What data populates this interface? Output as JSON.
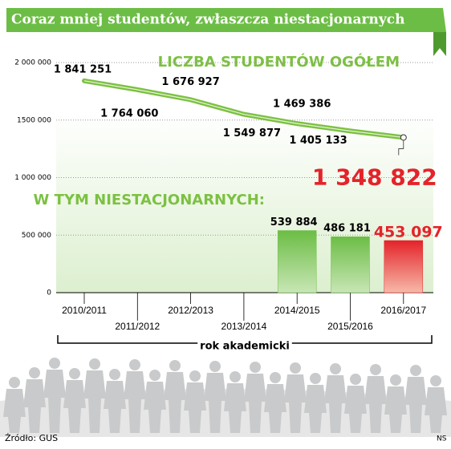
{
  "chart_data": {
    "type": "line-bar",
    "title": "Coraz mniej studentów, zwłaszcza niestacjonarnych",
    "x_label": "rok akademicki",
    "source": "Źródło: GUS",
    "credit": "NS",
    "categories": [
      "2010/2011",
      "2011/2012",
      "2012/2013",
      "2013/2014",
      "2014/2015",
      "2015/2016",
      "2016/2017"
    ],
    "series": [
      {
        "name": "Liczba studentów ogółem",
        "kind": "line",
        "color": "#7cc142",
        "values": [
          1841251,
          1764060,
          1676927,
          1549877,
          1469386,
          1405133,
          1348822
        ],
        "value_labels": [
          "1 841 251",
          "1 764 060",
          "1 676 927",
          "1 549 877",
          "1 469 386",
          "1 405 133",
          "1 348 822"
        ]
      },
      {
        "name": "W tym niestacjonarnych:",
        "kind": "bar",
        "color": "#6cbd45",
        "values": [
          null,
          null,
          null,
          null,
          539884,
          486181,
          453097
        ],
        "value_labels": [
          null,
          null,
          null,
          null,
          "539 884",
          "486 181",
          "453 097"
        ]
      }
    ],
    "highlight_color": "#e4232a",
    "ylim": [
      0,
      2000000
    ],
    "yticks": [
      0,
      {
        "value": 500000,
        "label": "500 000"
      },
      {
        "value": 1000000,
        "label": "1 000 000"
      },
      {
        "value": 1500000,
        "label": "1500 000"
      },
      {
        "value": 2000000,
        "label": "2 000 000"
      }
    ],
    "grid": true
  }
}
